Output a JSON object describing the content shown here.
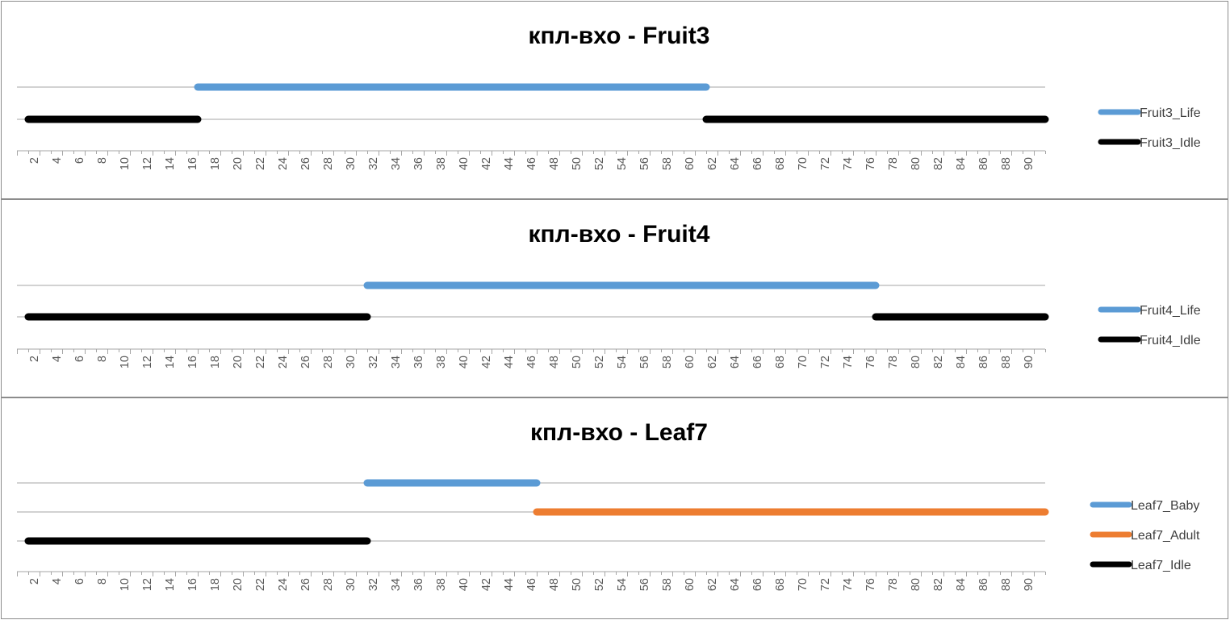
{
  "chart_data": [
    {
      "type": "line",
      "title": "кпл-вхо - Fruit3",
      "xlabel": "",
      "ylabel": "",
      "xlim": [
        0,
        91
      ],
      "x_tick_labels": [
        "2",
        "4",
        "6",
        "8",
        "10",
        "12",
        "14",
        "16",
        "18",
        "20",
        "22",
        "24",
        "26",
        "28",
        "30",
        "32",
        "34",
        "36",
        "38",
        "40",
        "42",
        "44",
        "46",
        "48",
        "50",
        "52",
        "54",
        "56",
        "58",
        "60",
        "62",
        "64",
        "66",
        "68",
        "70",
        "72",
        "74",
        "76",
        "78",
        "80",
        "82",
        "84",
        "86",
        "88",
        "90"
      ],
      "legend_position": "right",
      "series": [
        {
          "name": "Fruit3_Life",
          "color": "#5b9bd5",
          "segments": [
            [
              16,
              61
            ]
          ]
        },
        {
          "name": "Fruit3_Idle",
          "color": "#000000",
          "segments": [
            [
              1,
              16
            ],
            [
              61,
              91
            ]
          ]
        }
      ]
    },
    {
      "type": "line",
      "title": "кпл-вхо - Fruit4",
      "xlabel": "",
      "ylabel": "",
      "xlim": [
        0,
        91
      ],
      "x_tick_labels": [
        "2",
        "4",
        "6",
        "8",
        "10",
        "12",
        "14",
        "16",
        "18",
        "20",
        "22",
        "24",
        "26",
        "28",
        "30",
        "32",
        "34",
        "36",
        "38",
        "40",
        "42",
        "44",
        "46",
        "48",
        "50",
        "52",
        "54",
        "56",
        "58",
        "60",
        "62",
        "64",
        "66",
        "68",
        "70",
        "72",
        "74",
        "76",
        "78",
        "80",
        "82",
        "84",
        "86",
        "88",
        "90"
      ],
      "legend_position": "right",
      "series": [
        {
          "name": "Fruit4_Life",
          "color": "#5b9bd5",
          "segments": [
            [
              31,
              76
            ]
          ]
        },
        {
          "name": "Fruit4_Idle",
          "color": "#000000",
          "segments": [
            [
              1,
              31
            ],
            [
              76,
              91
            ]
          ]
        }
      ]
    },
    {
      "type": "line",
      "title": "кпл-вхо - Leaf7",
      "xlabel": "",
      "ylabel": "",
      "xlim": [
        0,
        91
      ],
      "x_tick_labels": [
        "2",
        "4",
        "6",
        "8",
        "10",
        "12",
        "14",
        "16",
        "18",
        "20",
        "22",
        "24",
        "26",
        "28",
        "30",
        "32",
        "34",
        "36",
        "38",
        "40",
        "42",
        "44",
        "46",
        "48",
        "50",
        "52",
        "54",
        "56",
        "58",
        "60",
        "62",
        "64",
        "66",
        "68",
        "70",
        "72",
        "74",
        "76",
        "78",
        "80",
        "82",
        "84",
        "86",
        "88",
        "90"
      ],
      "legend_position": "right",
      "series": [
        {
          "name": "Leaf7_Baby",
          "color": "#5b9bd5",
          "segments": [
            [
              31,
              46
            ]
          ]
        },
        {
          "name": "Leaf7_Adult",
          "color": "#ed7d31",
          "segments": [
            [
              46,
              91
            ]
          ]
        },
        {
          "name": "Leaf7_Idle",
          "color": "#000000",
          "segments": [
            [
              1,
              31
            ]
          ]
        }
      ]
    }
  ]
}
